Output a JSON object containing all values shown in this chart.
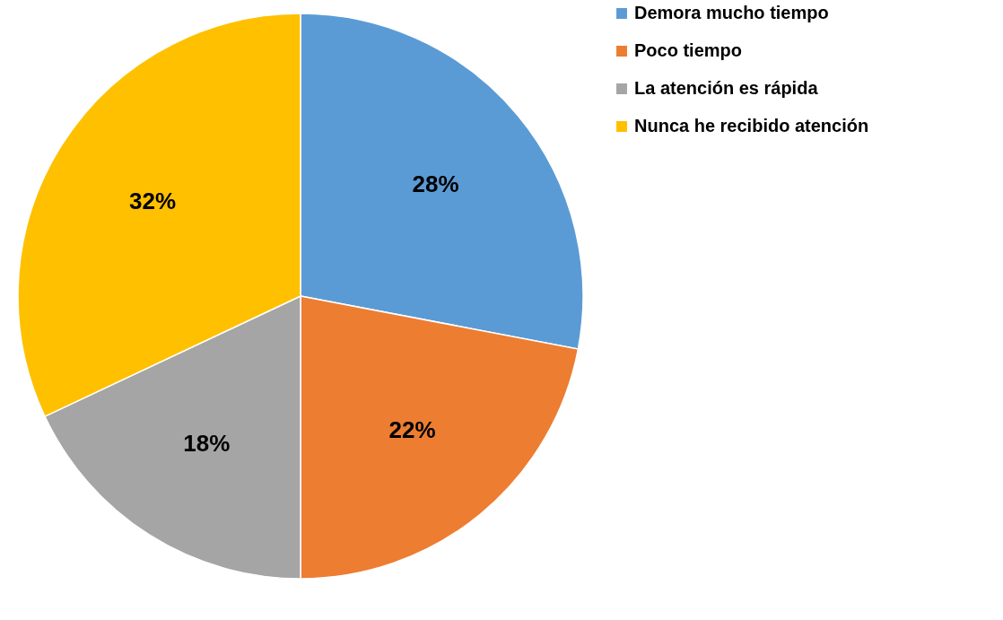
{
  "chart_data": {
    "type": "pie",
    "categories": [
      "Demora mucho tiempo",
      "Poco tiempo",
      "La atención es rápida",
      "Nunca he recibido atención"
    ],
    "values": [
      28,
      22,
      18,
      32
    ],
    "value_labels": [
      "28%",
      "22%",
      "18%",
      "32%"
    ],
    "colors": [
      "#5b9bd5",
      "#ed7d31",
      "#a5a5a5",
      "#ffc000"
    ],
    "legend": "right"
  }
}
